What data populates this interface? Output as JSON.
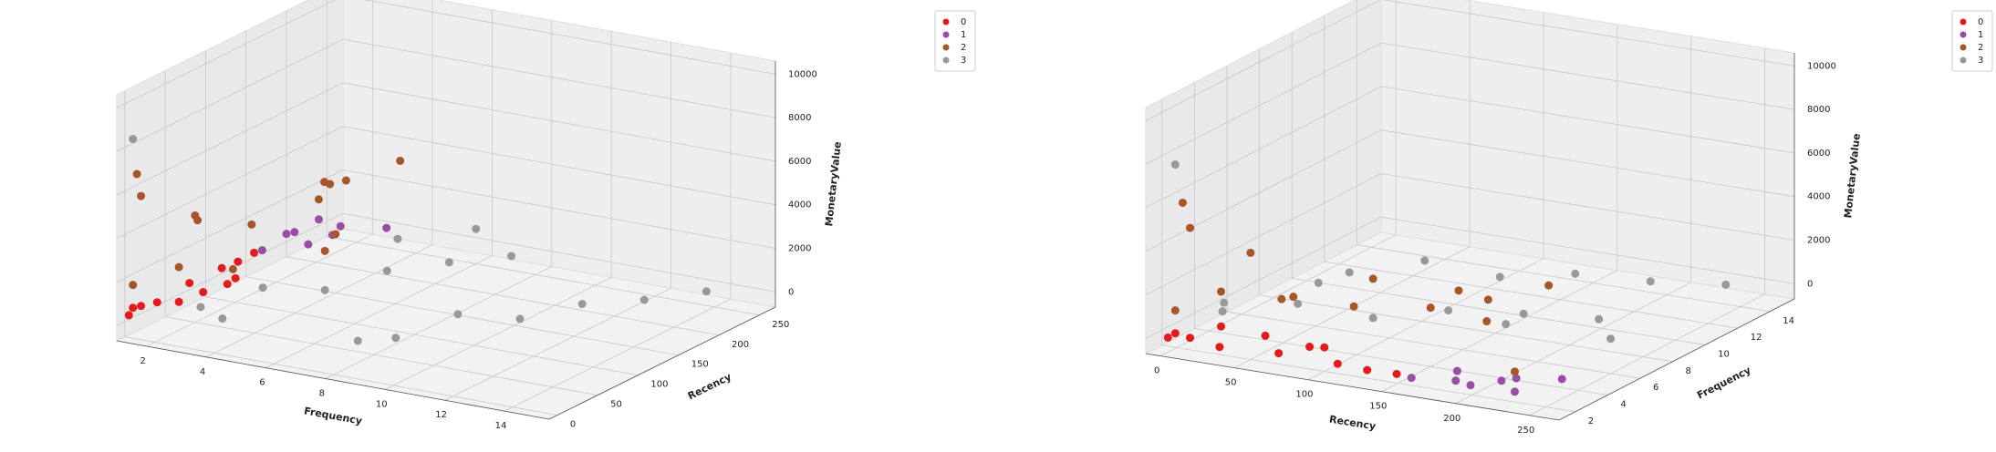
{
  "chart_data": [
    {
      "type": "scatter3d",
      "xlabel": "Frequency",
      "ylabel": "Recency",
      "zlabel": "MonetaryValue",
      "xlim": [
        1,
        15.5
      ],
      "ylim": [
        -10,
        270
      ],
      "zlim": [
        -700,
        10600
      ],
      "xticks": [
        2,
        4,
        6,
        8,
        10,
        12,
        14
      ],
      "yticks": [
        0,
        50,
        100,
        150,
        200,
        250
      ],
      "zticks": [
        0,
        2000,
        4000,
        6000,
        8000,
        10000
      ],
      "legend_position": "upper right",
      "grid": true,
      "series": [
        {
          "name": "0",
          "color": "#e41a1c",
          "x": [
            1,
            1,
            1,
            2,
            1,
            2,
            1,
            1,
            2,
            1,
            1,
            2
          ],
          "y": [
            5,
            20,
            40,
            60,
            80,
            100,
            120,
            140,
            30,
            160,
            10,
            90
          ],
          "z": [
            200,
            350,
            150,
            500,
            300,
            400,
            250,
            180,
            600,
            220,
            450,
            320
          ]
        },
        {
          "name": "1",
          "color": "#984ea3",
          "x": [
            1,
            2,
            1,
            2,
            3,
            1,
            2,
            1
          ],
          "y": [
            170,
            190,
            210,
            230,
            250,
            200,
            220,
            240
          ],
          "z": [
            150,
            300,
            250,
            400,
            200,
            350,
            180,
            280
          ]
        },
        {
          "name": "2",
          "color": "#a65628",
          "x": [
            1,
            2,
            3,
            1,
            2,
            4,
            3,
            2,
            1,
            5,
            2,
            3,
            1,
            4,
            1
          ],
          "y": [
            10,
            30,
            60,
            90,
            120,
            150,
            180,
            210,
            240,
            100,
            50,
            200,
            20,
            230,
            15
          ],
          "z": [
            1500,
            2200,
            1800,
            3000,
            2500,
            2000,
            3500,
            2800,
            1200,
            2400,
            4200,
            3300,
            5400,
            3900,
            6500
          ]
        },
        {
          "name": "3",
          "color": "#999999",
          "x": [
            3,
            4,
            5,
            6,
            7,
            8,
            9,
            10,
            11,
            12,
            13,
            14,
            4,
            6,
            8,
            5,
            1
          ],
          "y": [
            20,
            60,
            100,
            140,
            180,
            220,
            40,
            80,
            120,
            160,
            200,
            240,
            10,
            250,
            30,
            190,
            10
          ],
          "z": [
            800,
            1200,
            600,
            1000,
            900,
            700,
            500,
            1100,
            400,
            600,
            300,
            200,
            700,
            900,
            300,
            1300,
            8200
          ]
        }
      ]
    },
    {
      "type": "scatter3d",
      "xlabel": "Recency",
      "ylabel": "Frequency",
      "zlabel": "MonetaryValue",
      "xlim": [
        -10,
        270
      ],
      "ylim": [
        1,
        15.5
      ],
      "zlim": [
        -700,
        10600
      ],
      "xticks": [
        0,
        50,
        100,
        150,
        200,
        250
      ],
      "yticks": [
        2,
        4,
        6,
        8,
        10,
        12,
        14
      ],
      "zticks": [
        0,
        2000,
        4000,
        6000,
        8000,
        10000
      ],
      "legend_position": "upper right",
      "grid": true,
      "series": [
        {
          "name": "0",
          "color": "#e41a1c",
          "x": [
            5,
            20,
            40,
            60,
            80,
            100,
            120,
            140,
            30,
            160,
            10,
            90
          ],
          "y": [
            1,
            1,
            1,
            2,
            1,
            2,
            1,
            1,
            2,
            1,
            1,
            2
          ],
          "z": [
            200,
            350,
            150,
            500,
            300,
            400,
            250,
            180,
            600,
            220,
            450,
            320
          ]
        },
        {
          "name": "1",
          "color": "#984ea3",
          "x": [
            170,
            190,
            210,
            230,
            250,
            200,
            220,
            240
          ],
          "y": [
            1,
            2,
            1,
            2,
            3,
            1,
            2,
            1
          ],
          "z": [
            150,
            300,
            250,
            400,
            200,
            350,
            180,
            280
          ]
        },
        {
          "name": "2",
          "color": "#a65628",
          "x": [
            10,
            30,
            60,
            90,
            120,
            150,
            180,
            210,
            240,
            100,
            50,
            200,
            20,
            230,
            15
          ],
          "y": [
            1,
            2,
            3,
            1,
            2,
            4,
            3,
            2,
            1,
            5,
            2,
            3,
            1,
            4,
            1
          ],
          "z": [
            1500,
            2200,
            1800,
            3000,
            2500,
            2000,
            3500,
            2800,
            1200,
            2400,
            4200,
            3300,
            5400,
            3900,
            6500
          ]
        },
        {
          "name": "3",
          "color": "#999999",
          "x": [
            20,
            60,
            100,
            140,
            180,
            220,
            40,
            80,
            120,
            160,
            200,
            240,
            10,
            250,
            30,
            190,
            10
          ],
          "y": [
            3,
            4,
            5,
            6,
            7,
            8,
            9,
            10,
            11,
            12,
            13,
            14,
            4,
            6,
            8,
            5,
            1
          ],
          "z": [
            800,
            1200,
            600,
            1000,
            900,
            700,
            500,
            1100,
            400,
            600,
            300,
            200,
            700,
            900,
            300,
            1300,
            8200
          ]
        }
      ]
    }
  ]
}
